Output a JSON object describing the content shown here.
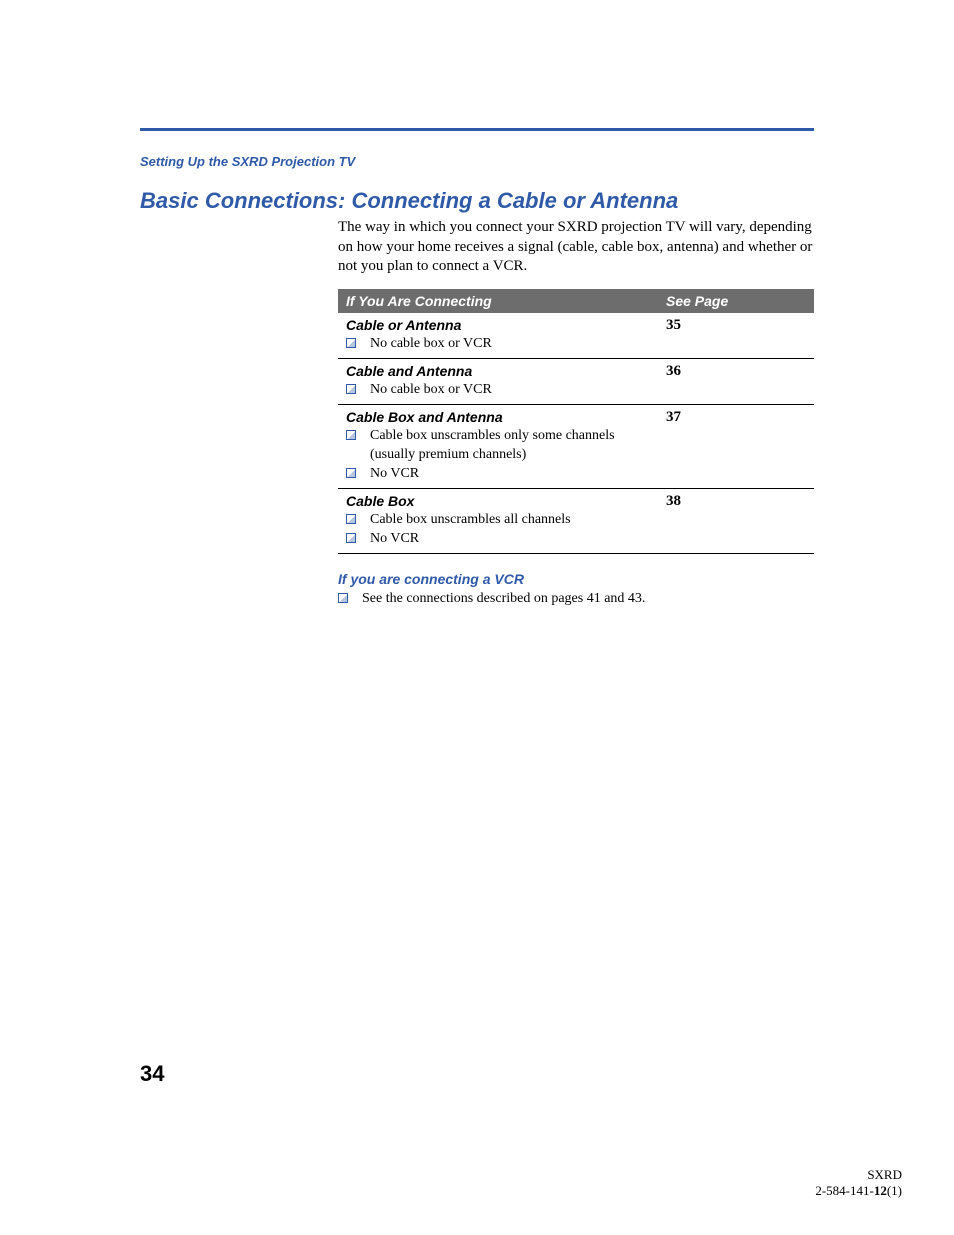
{
  "colors": {
    "accent": "#2f5aa8",
    "header_bg": "#6d6d6d",
    "header_fg": "#ffffff",
    "text": "#000000",
    "background": "#ffffff"
  },
  "section_label": "Setting Up the SXRD Projection TV",
  "title": "Basic Connections: Connecting a Cable or Antenna",
  "intro": "The way in which you connect your SXRD projection TV will vary, depending on how your home receives a signal (cable, cable box, antenna) and whether or not you plan to connect a VCR.",
  "table": {
    "columns": [
      "If You Are Connecting",
      "See Page"
    ],
    "rows": [
      {
        "title": "Cable or Antenna",
        "page": "35",
        "bullets": [
          "No cable box or VCR"
        ]
      },
      {
        "title": "Cable and Antenna",
        "page": "36",
        "bullets": [
          "No cable box or VCR"
        ]
      },
      {
        "title": "Cable Box and Antenna",
        "page": "37",
        "bullets": [
          "Cable box unscrambles only some channels (usually premium channels)",
          "No VCR"
        ]
      },
      {
        "title": "Cable Box",
        "page": "38",
        "bullets": [
          "Cable box unscrambles all channels",
          "No VCR"
        ]
      }
    ]
  },
  "vcr": {
    "heading": "If you are connecting a VCR",
    "text": "See the connections described on pages 41 and 43."
  },
  "page_number": "34",
  "footer": {
    "line1": "SXRD",
    "line2_prefix": "2-584-141-",
    "line2_bold": "12",
    "line2_suffix": "(1)"
  }
}
